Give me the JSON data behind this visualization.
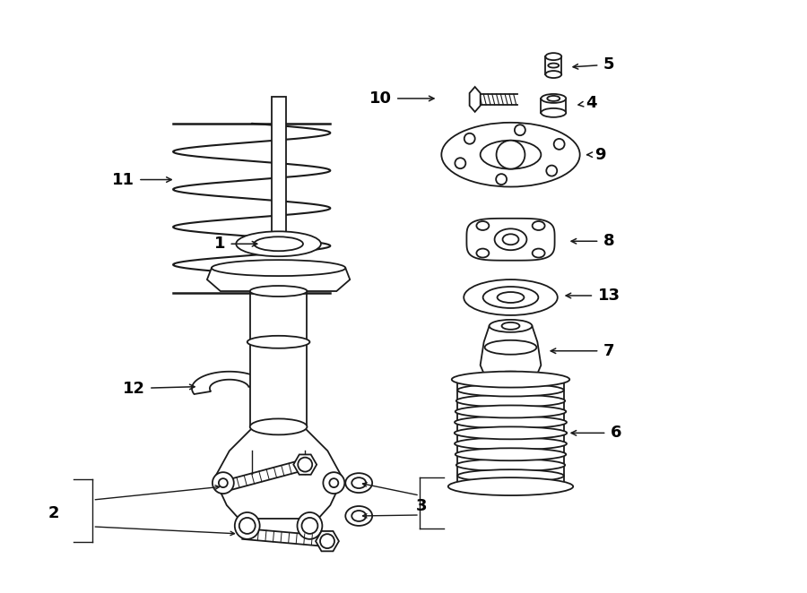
{
  "bg_color": "#ffffff",
  "line_color": "#1a1a1a",
  "text_color": "#000000",
  "fig_width": 9.0,
  "fig_height": 6.62,
  "dpi": 100
}
